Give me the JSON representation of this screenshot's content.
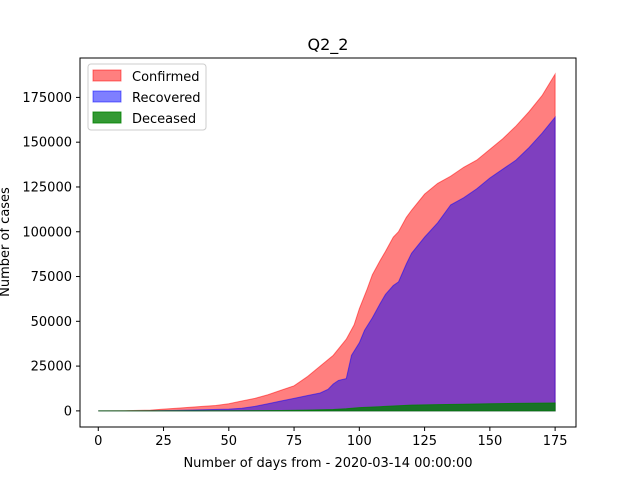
{
  "chart_data": {
    "type": "area",
    "title": "Q2_2",
    "xlabel": "Number of days from - 2020-03-14 00:00:00",
    "ylabel": "Number of cases",
    "xlim": [
      -7,
      183
    ],
    "ylim": [
      -9000,
      197000
    ],
    "xticks": [
      0,
      25,
      50,
      75,
      100,
      125,
      150,
      175
    ],
    "yticks": [
      0,
      25000,
      50000,
      75000,
      100000,
      125000,
      150000,
      175000
    ],
    "grid": false,
    "legend_position": "upper-left",
    "series": [
      {
        "name": "Confirmed",
        "color": "#ff0000",
        "alpha": 0.5,
        "points": [
          [
            0,
            0
          ],
          [
            10,
            100
          ],
          [
            20,
            400
          ],
          [
            25,
            1000
          ],
          [
            30,
            1500
          ],
          [
            40,
            2500
          ],
          [
            45,
            3000
          ],
          [
            50,
            4000
          ],
          [
            55,
            5500
          ],
          [
            60,
            7000
          ],
          [
            65,
            9000
          ],
          [
            70,
            11500
          ],
          [
            75,
            14000
          ],
          [
            80,
            19000
          ],
          [
            85,
            25000
          ],
          [
            90,
            31000
          ],
          [
            95,
            40000
          ],
          [
            98,
            48000
          ],
          [
            100,
            57000
          ],
          [
            103,
            68000
          ],
          [
            105,
            76000
          ],
          [
            108,
            84000
          ],
          [
            110,
            89000
          ],
          [
            113,
            97000
          ],
          [
            115,
            100000
          ],
          [
            118,
            108000
          ],
          [
            120,
            112000
          ],
          [
            125,
            121000
          ],
          [
            130,
            127000
          ],
          [
            135,
            131000
          ],
          [
            140,
            136000
          ],
          [
            145,
            140000
          ],
          [
            150,
            146000
          ],
          [
            155,
            152000
          ],
          [
            160,
            159000
          ],
          [
            165,
            167000
          ],
          [
            170,
            176000
          ],
          [
            175,
            188000
          ]
        ]
      },
      {
        "name": "Recovered",
        "color": "#0000ff",
        "alpha": 0.5,
        "points": [
          [
            0,
            0
          ],
          [
            10,
            0
          ],
          [
            20,
            100
          ],
          [
            30,
            300
          ],
          [
            40,
            600
          ],
          [
            50,
            1000
          ],
          [
            55,
            1500
          ],
          [
            60,
            2500
          ],
          [
            65,
            4000
          ],
          [
            70,
            5500
          ],
          [
            75,
            7000
          ],
          [
            80,
            8500
          ],
          [
            85,
            10000
          ],
          [
            88,
            12000
          ],
          [
            90,
            15000
          ],
          [
            92,
            17000
          ],
          [
            95,
            18000
          ],
          [
            97,
            31000
          ],
          [
            100,
            38000
          ],
          [
            102,
            45000
          ],
          [
            105,
            52000
          ],
          [
            108,
            60000
          ],
          [
            110,
            65000
          ],
          [
            113,
            70000
          ],
          [
            115,
            72000
          ],
          [
            118,
            82000
          ],
          [
            120,
            88000
          ],
          [
            125,
            97000
          ],
          [
            130,
            105000
          ],
          [
            135,
            115000
          ],
          [
            140,
            119000
          ],
          [
            145,
            124000
          ],
          [
            150,
            130000
          ],
          [
            155,
            135000
          ],
          [
            160,
            140000
          ],
          [
            165,
            147000
          ],
          [
            170,
            155000
          ],
          [
            175,
            164000
          ]
        ]
      },
      {
        "name": "Deceased",
        "color": "#008000",
        "alpha": 0.8,
        "points": [
          [
            0,
            0
          ],
          [
            50,
            50
          ],
          [
            70,
            200
          ],
          [
            80,
            400
          ],
          [
            90,
            800
          ],
          [
            95,
            1200
          ],
          [
            100,
            1800
          ],
          [
            110,
            2500
          ],
          [
            120,
            3200
          ],
          [
            130,
            3500
          ],
          [
            140,
            3700
          ],
          [
            150,
            4000
          ],
          [
            160,
            4200
          ],
          [
            175,
            4400
          ]
        ]
      }
    ]
  }
}
